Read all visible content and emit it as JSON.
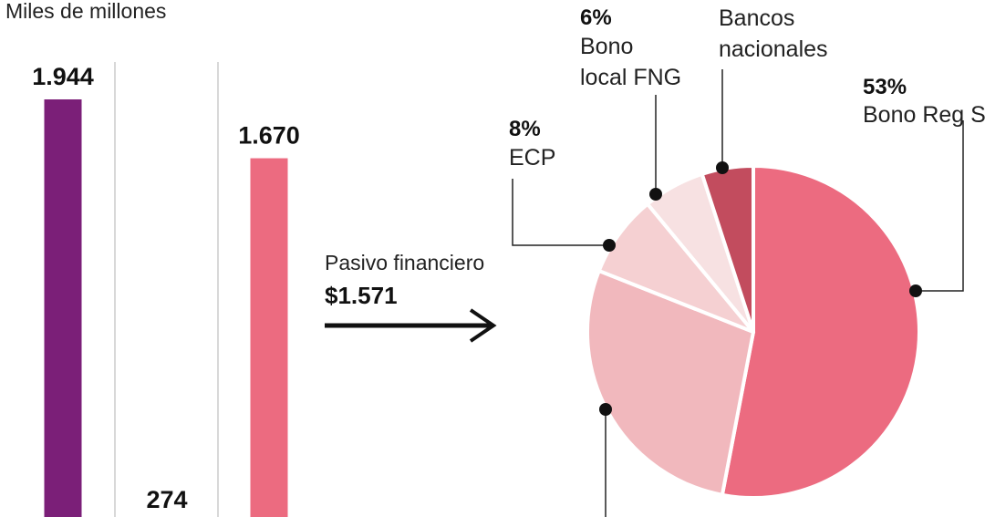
{
  "chart_data": [
    {
      "type": "bar",
      "ylabel": "Miles de millones",
      "categories": [
        "",
        "",
        ""
      ],
      "values": [
        1944,
        274,
        1670
      ],
      "value_labels": [
        "1.944",
        "274",
        "1.670"
      ],
      "colors": [
        "#7b1f78",
        "",
        "#ec6b80"
      ],
      "grid": false
    },
    {
      "type": "pie",
      "slices": [
        {
          "label": "Bono Reg S",
          "pct_label": "53%",
          "value": 53,
          "color": "#ec6b80"
        },
        {
          "label": "",
          "pct_label": "",
          "value": 28,
          "color": "#f1b8bd"
        },
        {
          "label": "ECP",
          "pct_label": "8%",
          "value": 8,
          "color": "#f5d0d2"
        },
        {
          "label": "Bono local FNG",
          "pct_label": "6%",
          "value": 6,
          "color": "#f7e1e2"
        },
        {
          "label": "Bancos nacionales",
          "pct_label": "",
          "value": 5,
          "color": "#c24c5e"
        }
      ]
    }
  ],
  "annotation": {
    "label": "Pasivo financiero",
    "value": "$1.571"
  },
  "pie_text": {
    "bono_fng_line1": "Bono",
    "bono_fng_line2": "local FNG",
    "bancos_line1": "Bancos",
    "bancos_line2": "nacionales"
  }
}
